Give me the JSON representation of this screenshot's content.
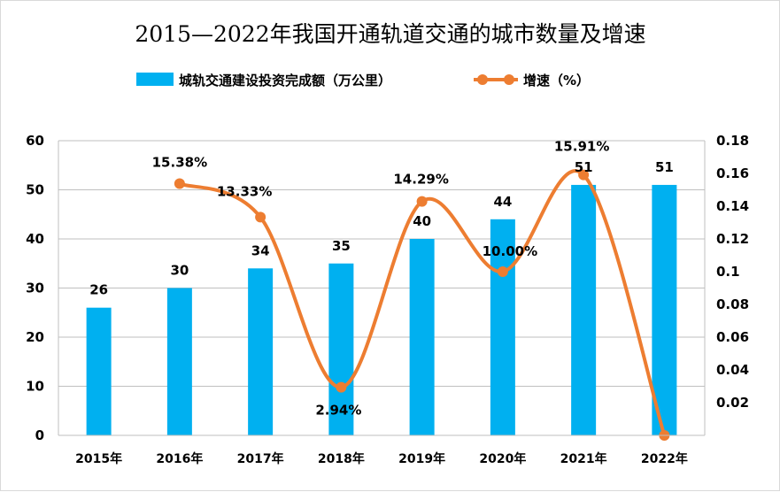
{
  "chart_data": {
    "type": "bar",
    "title": "2015—2022年我国开通轨道交通的城市数量及增速",
    "categories": [
      "2015年",
      "2016年",
      "2017年",
      "2018年",
      "2019年",
      "2020年",
      "2021年",
      "2022年"
    ],
    "series": [
      {
        "name": "城轨交通建设投资完成额（万公里）",
        "type": "bar",
        "axis": "left",
        "color": "#00b0f0",
        "values": [
          26,
          30,
          34,
          35,
          40,
          44,
          51,
          51
        ],
        "labels": [
          "26",
          "30",
          "34",
          "35",
          "40",
          "44",
          "51",
          "51"
        ]
      },
      {
        "name": "增速（%）",
        "type": "line",
        "axis": "right",
        "smooth": true,
        "color": "#ed7d31",
        "values": [
          null,
          0.1538,
          0.1333,
          0.0294,
          0.1429,
          0.1,
          0.1591,
          0.0
        ],
        "labels": [
          null,
          "15.38%",
          "13.33%",
          "2.94%",
          "14.29%",
          "10.00%",
          "15.91%",
          null
        ]
      }
    ],
    "y_left": {
      "min": 0,
      "max": 60,
      "ticks": [
        "0",
        "10",
        "20",
        "30",
        "40",
        "50",
        "60"
      ]
    },
    "y_right": {
      "min": 0,
      "max": 0.18,
      "ticks": [
        "0.02",
        "0.04",
        "0.06",
        "0.08",
        "0.1",
        "0.12",
        "0.14",
        "0.16",
        "0.18"
      ]
    },
    "grid": true,
    "legend_position": "top"
  }
}
